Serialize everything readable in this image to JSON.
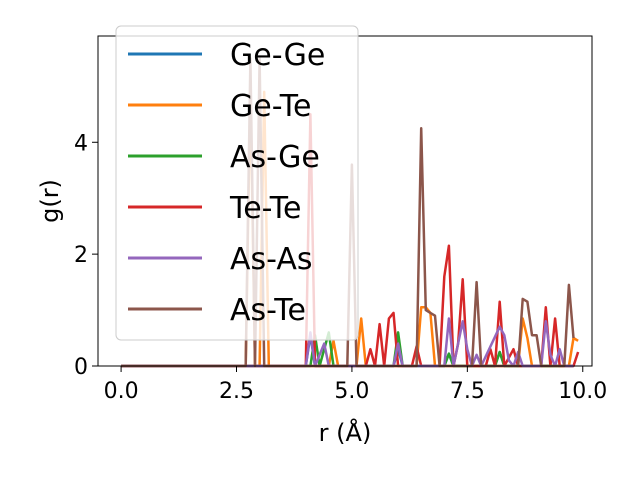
{
  "chart_data": {
    "type": "line",
    "xlabel": "r (Å)",
    "ylabel": "g(r)",
    "xlim": [
      -0.5,
      10.2
    ],
    "ylim": [
      0,
      5.9
    ],
    "xticks": [
      "0.0",
      "2.5",
      "5.0",
      "7.5",
      "10.0"
    ],
    "yticks": [
      "0",
      "2",
      "4"
    ],
    "grid": false,
    "legend": {
      "placement": "upper-left"
    },
    "series": [
      {
        "name": "Ge-Ge",
        "color": "#1f77b4",
        "points": [
          [
            0,
            0
          ],
          [
            4.0,
            0
          ],
          [
            4.1,
            0.55
          ],
          [
            4.2,
            0
          ],
          [
            5.9,
            0
          ],
          [
            6.0,
            0.3
          ],
          [
            6.1,
            0
          ],
          [
            7.0,
            0
          ],
          [
            7.1,
            0.22
          ],
          [
            7.2,
            0
          ],
          [
            8.1,
            0
          ],
          [
            8.2,
            0.25
          ],
          [
            8.3,
            0
          ],
          [
            9.8,
            0
          ]
        ]
      },
      {
        "name": "Ge-Te",
        "color": "#ff7f0e",
        "points": [
          [
            0,
            0
          ],
          [
            2.7,
            0
          ],
          [
            2.8,
            5.0
          ],
          [
            2.9,
            0
          ],
          [
            3.0,
            0
          ],
          [
            3.1,
            4.9
          ],
          [
            3.2,
            0
          ],
          [
            4.5,
            0
          ],
          [
            4.6,
            0.45
          ],
          [
            4.7,
            0
          ],
          [
            5.1,
            0
          ],
          [
            5.2,
            0.85
          ],
          [
            5.3,
            0
          ],
          [
            6.4,
            0
          ],
          [
            6.5,
            1.05
          ],
          [
            6.6,
            1.05
          ],
          [
            6.7,
            0.95
          ],
          [
            6.8,
            0
          ],
          [
            8.6,
            0
          ],
          [
            8.7,
            0.85
          ],
          [
            8.8,
            0.5
          ],
          [
            8.9,
            0
          ],
          [
            9.7,
            0
          ],
          [
            9.8,
            0.5
          ],
          [
            9.9,
            0.45
          ]
        ]
      },
      {
        "name": "As-Ge",
        "color": "#2ca02c",
        "points": [
          [
            0,
            0
          ],
          [
            4.1,
            0
          ],
          [
            4.2,
            0.55
          ],
          [
            4.3,
            0
          ],
          [
            4.5,
            0.6
          ],
          [
            4.6,
            0
          ],
          [
            5.9,
            0
          ],
          [
            6.0,
            0.6
          ],
          [
            6.1,
            0
          ],
          [
            7.0,
            0
          ],
          [
            7.1,
            0.22
          ],
          [
            7.2,
            0
          ],
          [
            8.1,
            0
          ],
          [
            8.2,
            0.25
          ],
          [
            8.3,
            0
          ],
          [
            9.8,
            0
          ]
        ]
      },
      {
        "name": "Te-Te",
        "color": "#d62728",
        "points": [
          [
            0,
            0
          ],
          [
            4.0,
            0
          ],
          [
            4.1,
            4.5
          ],
          [
            4.2,
            0
          ],
          [
            5.3,
            0
          ],
          [
            5.4,
            0.3
          ],
          [
            5.5,
            0
          ],
          [
            5.6,
            0.75
          ],
          [
            5.7,
            0
          ],
          [
            5.8,
            0.85
          ],
          [
            5.9,
            0.95
          ],
          [
            6.0,
            0
          ],
          [
            6.3,
            0
          ],
          [
            6.4,
            0.35
          ],
          [
            6.5,
            0
          ],
          [
            6.9,
            0
          ],
          [
            7.0,
            1.6
          ],
          [
            7.1,
            2.15
          ],
          [
            7.2,
            0
          ],
          [
            7.3,
            0.4
          ],
          [
            7.4,
            1.55
          ],
          [
            7.5,
            0
          ],
          [
            7.9,
            0
          ],
          [
            8.0,
            0.3
          ],
          [
            8.1,
            0
          ],
          [
            8.2,
            1.15
          ],
          [
            8.3,
            0
          ],
          [
            8.5,
            0.3
          ],
          [
            8.6,
            0
          ],
          [
            9.1,
            0
          ],
          [
            9.2,
            1.05
          ],
          [
            9.3,
            0
          ],
          [
            9.4,
            0.85
          ],
          [
            9.5,
            0
          ],
          [
            9.8,
            0
          ],
          [
            9.9,
            0.25
          ]
        ]
      },
      {
        "name": "As-As",
        "color": "#9467bd",
        "points": [
          [
            0,
            0
          ],
          [
            4.0,
            0
          ],
          [
            4.1,
            0.6
          ],
          [
            4.2,
            0
          ],
          [
            4.4,
            0.4
          ],
          [
            4.5,
            0
          ],
          [
            5.9,
            0
          ],
          [
            6.0,
            0.4
          ],
          [
            6.1,
            0
          ],
          [
            7.0,
            0
          ],
          [
            7.1,
            0.85
          ],
          [
            7.2,
            0
          ],
          [
            7.3,
            0.4
          ],
          [
            7.4,
            0.8
          ],
          [
            7.5,
            0.3
          ],
          [
            7.6,
            0
          ],
          [
            7.7,
            0.2
          ],
          [
            7.8,
            0
          ],
          [
            8.2,
            0.7
          ],
          [
            8.3,
            0.55
          ],
          [
            8.4,
            0.1
          ],
          [
            8.5,
            0
          ],
          [
            8.6,
            0.25
          ],
          [
            8.7,
            0
          ],
          [
            9.1,
            0
          ],
          [
            9.2,
            0.8
          ],
          [
            9.3,
            0.2
          ],
          [
            9.4,
            0
          ],
          [
            9.5,
            0.3
          ],
          [
            9.6,
            0
          ],
          [
            9.8,
            0
          ]
        ]
      },
      {
        "name": "As-Te",
        "color": "#8c564b",
        "points": [
          [
            0,
            0
          ],
          [
            2.7,
            0
          ],
          [
            2.8,
            5.5
          ],
          [
            2.9,
            0
          ],
          [
            3.0,
            5.5
          ],
          [
            3.1,
            0
          ],
          [
            4.9,
            0
          ],
          [
            5.0,
            3.6
          ],
          [
            5.1,
            0
          ],
          [
            6.4,
            0
          ],
          [
            6.5,
            4.25
          ],
          [
            6.6,
            1.0
          ],
          [
            6.7,
            0.95
          ],
          [
            6.8,
            0.9
          ],
          [
            6.9,
            0
          ],
          [
            7.6,
            0
          ],
          [
            7.7,
            1.5
          ],
          [
            7.8,
            0
          ],
          [
            8.6,
            0
          ],
          [
            8.7,
            1.2
          ],
          [
            8.8,
            1.15
          ],
          [
            8.9,
            0.55
          ],
          [
            9.0,
            0.55
          ],
          [
            9.1,
            0
          ],
          [
            9.6,
            0
          ],
          [
            9.7,
            1.45
          ],
          [
            9.8,
            0.5
          ]
        ]
      }
    ]
  }
}
